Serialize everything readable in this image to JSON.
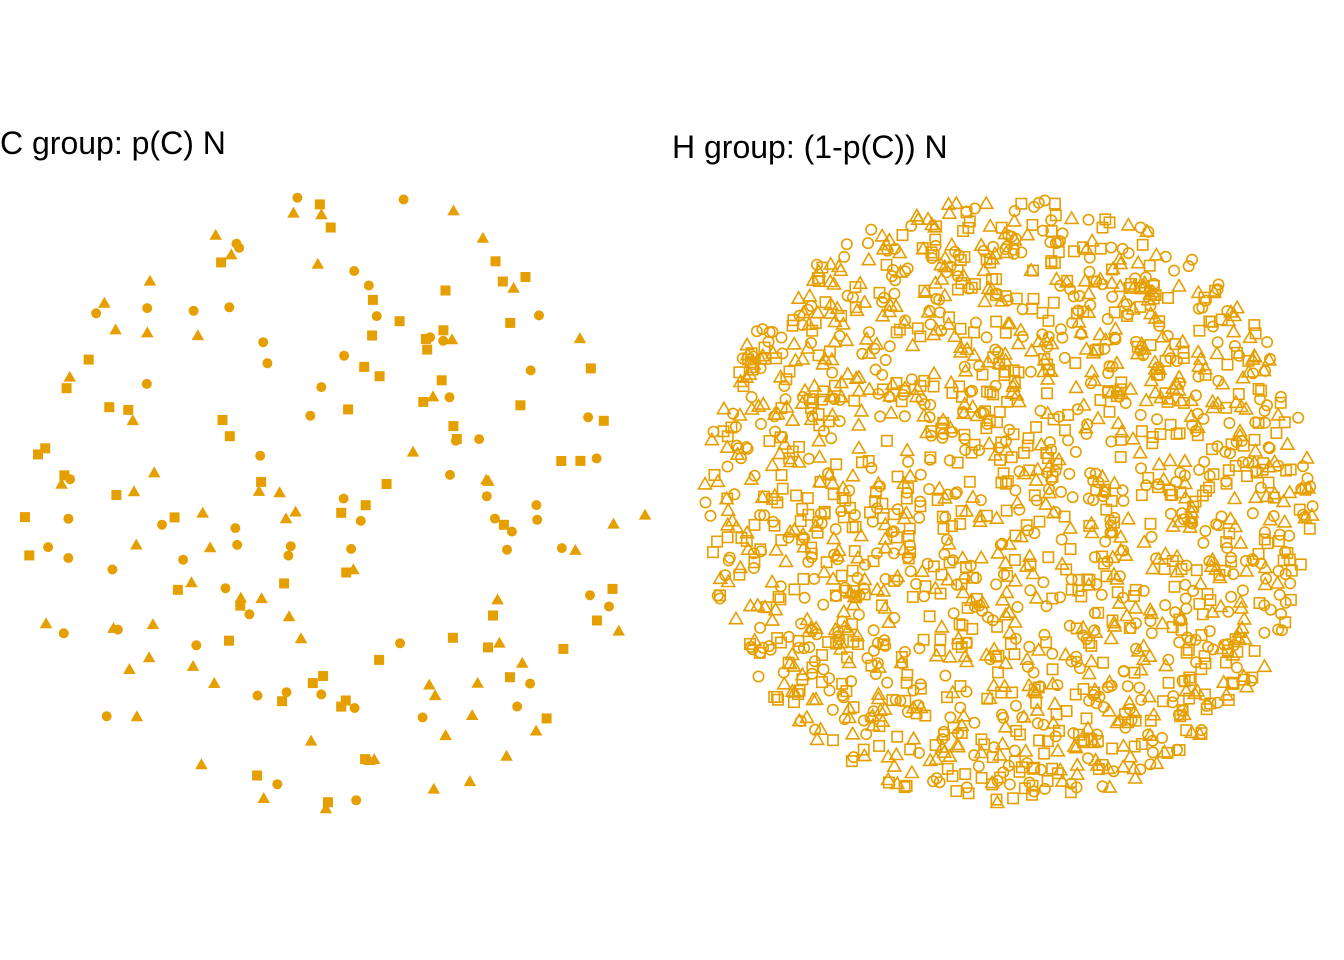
{
  "colors": {
    "point": "#E69F00",
    "background": "#FFFFFF",
    "text": "#000000"
  },
  "chart_data": [
    {
      "type": "scatter",
      "title": "C group: p(C) N",
      "marker_fill": "filled",
      "shapes": [
        "circle",
        "triangle",
        "square"
      ],
      "points": [
        [
          0.355,
          0.0
        ],
        [
          0.357,
          0.1
        ],
        [
          0.37,
          0.2
        ],
        [
          0.358,
          0.25
        ],
        [
          0.375,
          0.3
        ],
        [
          0.17,
          0.2
        ],
        [
          0.188,
          0.22
        ],
        [
          0.205,
          0.21
        ],
        [
          0.155,
          0.12
        ],
        [
          0.148,
          0.05
        ],
        [
          0.128,
          0.31
        ],
        [
          0.1,
          0.62
        ],
        [
          0.07,
          0.74
        ],
        [
          0.06,
          0.9
        ],
        [
          0.09,
          0.68
        ],
        [
          0.13,
          0.48
        ],
        [
          0.18,
          0.55
        ],
        [
          0.22,
          0.43
        ],
        [
          0.26,
          0.36
        ],
        [
          0.3,
          0.38
        ],
        [
          0.33,
          0.41
        ],
        [
          0.4,
          0.47
        ],
        [
          0.44,
          0.52
        ],
        [
          0.48,
          0.57
        ],
        [
          0.52,
          0.6
        ],
        [
          0.56,
          0.66
        ],
        [
          0.6,
          0.72
        ],
        [
          0.64,
          0.77
        ],
        [
          0.68,
          0.84
        ],
        [
          0.72,
          0.88
        ],
        [
          0.76,
          0.92
        ],
        [
          0.8,
          0.95
        ],
        [
          0.84,
          0.97
        ],
        [
          0.86,
          0.9
        ],
        [
          0.82,
          0.86
        ],
        [
          0.78,
          0.81
        ],
        [
          0.74,
          0.76
        ],
        [
          0.7,
          0.71
        ],
        [
          0.66,
          0.67
        ],
        [
          0.62,
          0.62
        ],
        [
          0.58,
          0.57
        ],
        [
          0.54,
          0.52
        ],
        [
          0.5,
          0.48
        ],
        [
          0.46,
          0.44
        ],
        [
          0.42,
          0.4
        ],
        [
          0.38,
          0.36
        ],
        [
          0.34,
          0.32
        ],
        [
          0.3,
          0.29
        ],
        [
          0.26,
          0.26
        ],
        [
          0.22,
          0.23
        ],
        [
          0.18,
          0.21
        ],
        [
          0.14,
          0.24
        ],
        [
          0.1,
          0.29
        ],
        [
          0.06,
          0.34
        ],
        [
          0.03,
          0.4
        ],
        [
          0.02,
          0.46
        ],
        [
          0.03,
          0.52
        ],
        [
          0.05,
          0.58
        ],
        [
          0.08,
          0.64
        ],
        [
          0.11,
          0.69
        ],
        [
          0.15,
          0.74
        ],
        [
          0.19,
          0.78
        ],
        [
          0.23,
          0.82
        ],
        [
          0.27,
          0.86
        ],
        [
          0.31,
          0.89
        ],
        [
          0.35,
          0.92
        ],
        [
          0.39,
          0.94
        ],
        [
          0.43,
          0.96
        ],
        [
          0.47,
          0.97
        ],
        [
          0.51,
          0.96
        ],
        [
          0.55,
          0.94
        ],
        [
          0.59,
          0.91
        ],
        [
          0.63,
          0.88
        ],
        [
          0.67,
          0.84
        ],
        [
          0.71,
          0.8
        ],
        [
          0.75,
          0.75
        ],
        [
          0.79,
          0.7
        ],
        [
          0.83,
          0.64
        ],
        [
          0.87,
          0.58
        ],
        [
          0.9,
          0.52
        ],
        [
          0.92,
          0.46
        ],
        [
          0.93,
          0.4
        ],
        [
          0.92,
          0.34
        ],
        [
          0.9,
          0.28
        ],
        [
          0.87,
          0.22
        ],
        [
          0.83,
          0.17
        ],
        [
          0.79,
          0.13
        ],
        [
          0.75,
          0.09
        ],
        [
          0.7,
          0.06
        ],
        [
          0.65,
          0.04
        ],
        [
          0.6,
          0.03
        ],
        [
          0.55,
          0.02
        ],
        [
          0.5,
          0.02
        ],
        [
          0.45,
          0.03
        ],
        [
          0.4,
          0.05
        ],
        [
          0.35,
          0.07
        ],
        [
          0.3,
          0.09
        ],
        [
          0.25,
          0.12
        ],
        [
          0.2,
          0.16
        ],
        [
          0.16,
          0.2
        ],
        [
          0.12,
          0.25
        ],
        [
          0.09,
          0.31
        ],
        [
          0.06,
          0.37
        ],
        [
          0.04,
          0.43
        ],
        [
          0.04,
          0.49
        ],
        [
          0.05,
          0.55
        ],
        [
          0.07,
          0.61
        ],
        [
          0.1,
          0.66
        ],
        [
          0.13,
          0.71
        ],
        [
          0.17,
          0.75
        ],
        [
          0.21,
          0.79
        ],
        [
          0.25,
          0.83
        ],
        [
          0.29,
          0.86
        ],
        [
          0.33,
          0.88
        ],
        [
          0.37,
          0.9
        ],
        [
          0.41,
          0.91
        ],
        [
          0.45,
          0.92
        ],
        [
          0.49,
          0.92
        ],
        [
          0.53,
          0.91
        ],
        [
          0.57,
          0.89
        ],
        [
          0.61,
          0.87
        ],
        [
          0.65,
          0.84
        ],
        [
          0.69,
          0.8
        ],
        [
          0.73,
          0.76
        ],
        [
          0.77,
          0.71
        ],
        [
          0.81,
          0.66
        ],
        [
          0.84,
          0.6
        ],
        [
          0.87,
          0.54
        ],
        [
          0.88,
          0.48
        ],
        [
          0.89,
          0.42
        ],
        [
          0.88,
          0.36
        ],
        [
          0.86,
          0.3
        ],
        [
          0.83,
          0.25
        ],
        [
          0.8,
          0.2
        ],
        [
          0.76,
          0.16
        ],
        [
          0.72,
          0.13
        ],
        [
          0.67,
          0.1
        ],
        [
          0.62,
          0.08
        ],
        [
          0.57,
          0.07
        ],
        [
          0.52,
          0.06
        ],
        [
          0.47,
          0.07
        ],
        [
          0.42,
          0.08
        ],
        [
          0.37,
          0.1
        ],
        [
          0.32,
          0.13
        ],
        [
          0.27,
          0.16
        ],
        [
          0.23,
          0.2
        ],
        [
          0.19,
          0.24
        ],
        [
          0.15,
          0.29
        ],
        [
          0.12,
          0.34
        ],
        [
          0.1,
          0.4
        ],
        [
          0.09,
          0.46
        ],
        [
          0.09,
          0.52
        ],
        [
          0.11,
          0.58
        ],
        [
          0.13,
          0.63
        ],
        [
          0.16,
          0.68
        ],
        [
          0.2,
          0.72
        ],
        [
          0.24,
          0.76
        ],
        [
          0.28,
          0.79
        ],
        [
          0.32,
          0.82
        ],
        [
          0.36,
          0.84
        ],
        [
          0.4,
          0.86
        ],
        [
          0.44,
          0.87
        ],
        [
          0.48,
          0.87
        ],
        [
          0.52,
          0.86
        ],
        [
          0.56,
          0.84
        ],
        [
          0.6,
          0.82
        ],
        [
          0.64,
          0.79
        ],
        [
          0.68,
          0.75
        ],
        [
          0.72,
          0.71
        ],
        [
          0.75,
          0.66
        ],
        [
          0.78,
          0.61
        ],
        [
          0.8,
          0.55
        ],
        [
          0.82,
          0.49
        ],
        [
          0.82,
          0.43
        ],
        [
          0.81,
          0.37
        ],
        [
          0.79,
          0.31
        ],
        [
          0.76,
          0.26
        ],
        [
          0.73,
          0.22
        ],
        [
          0.69,
          0.18
        ],
        [
          0.64,
          0.15
        ],
        [
          0.59,
          0.13
        ],
        [
          0.54,
          0.12
        ],
        [
          0.49,
          0.12
        ],
        [
          0.44,
          0.13
        ],
        [
          0.39,
          0.15
        ],
        [
          0.34,
          0.18
        ],
        [
          0.3,
          0.22
        ],
        [
          0.26,
          0.26
        ],
        [
          0.23,
          0.31
        ],
        [
          0.21,
          0.37
        ],
        [
          0.19,
          0.43
        ],
        [
          0.19,
          0.49
        ],
        [
          0.2,
          0.55
        ],
        [
          0.22,
          0.61
        ],
        [
          0.25,
          0.66
        ],
        [
          0.28,
          0.7
        ],
        [
          0.32,
          0.73
        ],
        [
          0.36,
          0.76
        ],
        [
          0.4,
          0.77
        ],
        [
          0.44,
          0.78
        ]
      ]
    },
    {
      "type": "scatter",
      "title": "H group: (1-p(C)) N",
      "marker_fill": "hollow",
      "shapes": [
        "circle",
        "triangle",
        "square"
      ],
      "point_count": 1800
    }
  ]
}
